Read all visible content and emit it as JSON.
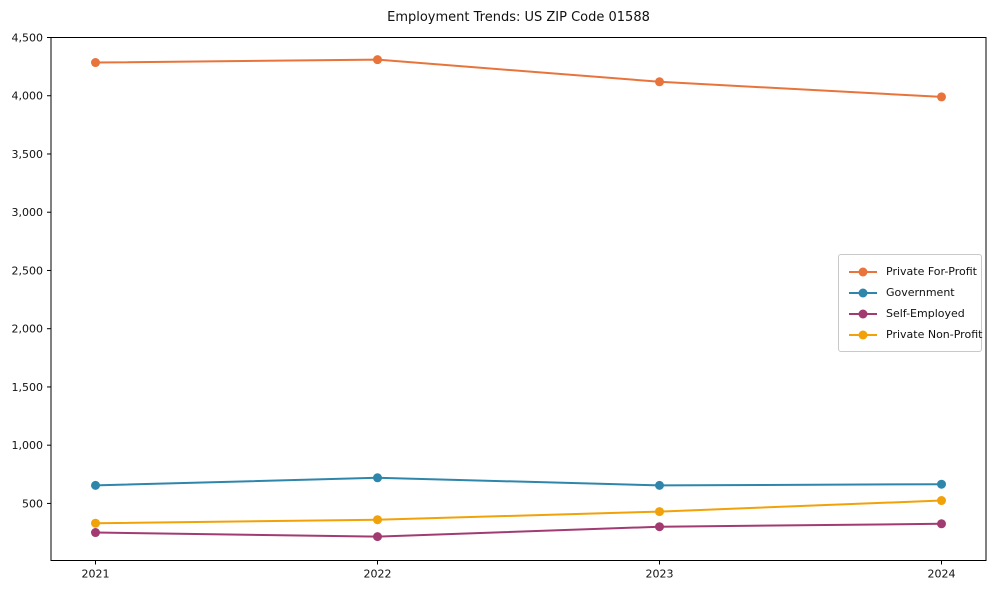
{
  "chart_data": {
    "type": "line",
    "title": "Employment Trends: US ZIP Code 01588",
    "xlabel": "",
    "ylabel": "",
    "categories": [
      "2021",
      "2022",
      "2023",
      "2024"
    ],
    "series": [
      {
        "name": "Private For-Profit",
        "color": "#E8743B",
        "values": [
          4285,
          4310,
          4120,
          3990
        ]
      },
      {
        "name": "Government",
        "color": "#2E86AB",
        "values": [
          655,
          720,
          655,
          665
        ]
      },
      {
        "name": "Self-Employed",
        "color": "#A23B72",
        "values": [
          250,
          215,
          300,
          325
        ]
      },
      {
        "name": "Private Non-Profit",
        "color": "#F1A208",
        "values": [
          330,
          360,
          430,
          525
        ]
      }
    ],
    "ylim": [
      10,
      4500
    ],
    "yticks": [
      500,
      1000,
      1500,
      2000,
      2500,
      3000,
      3500,
      4000,
      4500
    ],
    "ytick_labels": [
      "500",
      "1,000",
      "1,500",
      "2,000",
      "2,500",
      "3,000",
      "3,500",
      "4,000",
      "4,500"
    ],
    "grid": false,
    "legend_position": "right-middle",
    "marker": "circle",
    "line_width": 2,
    "spine_color": "#000000"
  }
}
